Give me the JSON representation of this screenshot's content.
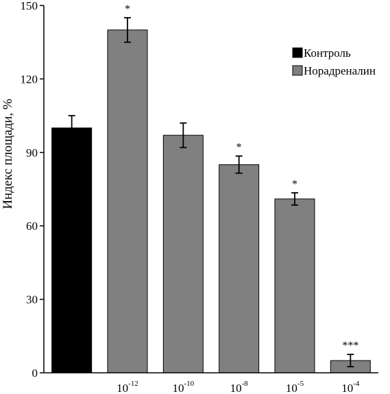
{
  "chart_data": {
    "type": "bar",
    "title": "",
    "xlabel": "",
    "ylabel": "Индекс площади, %",
    "ylim": [
      0,
      150
    ],
    "yticks": [
      "0",
      "30",
      "60",
      "90",
      "120",
      "150"
    ],
    "grid": false,
    "legend_position": "top-right",
    "categories": [
      {
        "base": "",
        "exp": ""
      },
      {
        "base": "10",
        "exp": "-12"
      },
      {
        "base": "10",
        "exp": "-10"
      },
      {
        "base": "10",
        "exp": "-8"
      },
      {
        "base": "10",
        "exp": "-5"
      },
      {
        "base": "10",
        "exp": "-4"
      }
    ],
    "series": [
      {
        "name": "Контроль",
        "color": "#000000",
        "values": [
          100,
          null,
          null,
          null,
          null,
          null
        ],
        "errors": [
          5,
          null,
          null,
          null,
          null,
          null
        ]
      },
      {
        "name": "Норадреналин",
        "color": "#808080",
        "values": [
          null,
          140,
          97,
          85,
          71,
          5
        ],
        "errors": [
          null,
          5,
          5,
          3.5,
          2.5,
          2.5
        ]
      }
    ],
    "significance": [
      "",
      "*",
      "",
      "*",
      "*",
      "***"
    ]
  }
}
